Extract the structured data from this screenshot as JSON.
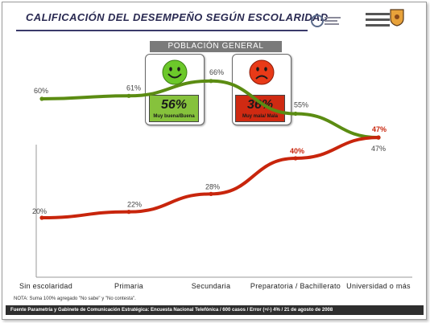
{
  "header": {
    "title": "CALIFICACIÓN DEL DESEMPEÑO SEGÚN ESCOLARIDAD"
  },
  "population": {
    "header": "POBLACIÓN GENERAL",
    "good": {
      "value": "56%",
      "label": "Muy buena/Buena",
      "color": "#86c23c"
    },
    "bad": {
      "value": "36%",
      "label": "Muy mala/ Mala",
      "color": "#cf2a12"
    }
  },
  "chart_data": {
    "type": "line",
    "categories": [
      "Sin escolaridad",
      "Primaria",
      "Secundaria",
      "Preparatoria / Bachillerato",
      "Universidad o más"
    ],
    "series": [
      {
        "values": [
          60,
          61,
          66,
          55,
          47
        ],
        "labels": [
          "60%",
          "61%",
          "66%",
          "55%",
          "47%"
        ],
        "color": "#5b8c12"
      },
      {
        "values": [
          20,
          22,
          28,
          40,
          47
        ],
        "labels": [
          "20%",
          "22%",
          "28%",
          "40%",
          "47%"
        ],
        "color": "#c8250c"
      }
    ],
    "ylim": [
      0,
      80
    ],
    "grid": false,
    "legend": "none"
  },
  "note": "NOTA: Suma 100% agregado \"No sabe\" y \"No contesta\".",
  "footer": "Fuente Parametría y Gabinete de Comunicación Estratégica: Encuesta Nacional Telefónica / 600 casos / Error (+/-) 4% / 21 de agosto de 2008"
}
